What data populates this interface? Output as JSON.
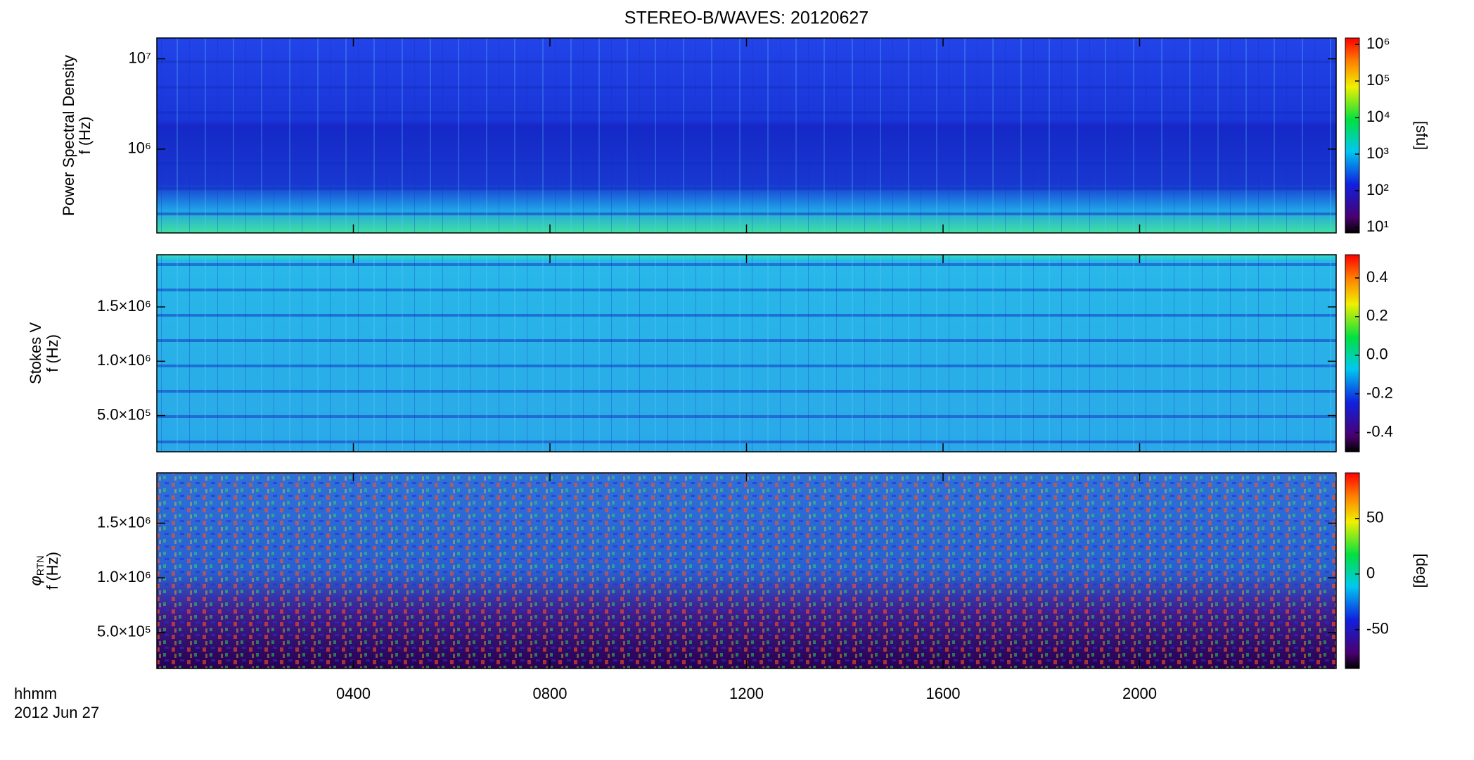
{
  "chart_data": [
    {
      "type": "heatmap",
      "title": "STEREO-B/WAVES: 20120627",
      "ylabel": "Power Spectral Density",
      "yunit_label": "f (Hz)",
      "yscale": "log",
      "xlim": [
        0,
        24
      ],
      "ylim": [
        118000,
        17000000
      ],
      "yticks": [
        {
          "value": 1000000,
          "label": "10⁶"
        },
        {
          "value": 10000000,
          "label": "10⁷"
        }
      ],
      "cscale": "log",
      "clim": [
        7,
        1500000
      ],
      "clabel": "[sfu]",
      "cticks": [
        {
          "value": 10,
          "label": "10¹"
        },
        {
          "value": 100,
          "label": "10²"
        },
        {
          "value": 1000,
          "label": "10³"
        },
        {
          "value": 10000,
          "label": "10⁴"
        },
        {
          "value": 100000,
          "label": "10⁵"
        },
        {
          "value": 1000000,
          "label": "10⁶"
        }
      ]
    },
    {
      "type": "heatmap",
      "ylabel": "Stokes V",
      "yunit_label": "f (Hz)",
      "yscale": "linear",
      "xlim": [
        0,
        24
      ],
      "ylim": [
        167000,
        1980000
      ],
      "yticks": [
        {
          "value": 500000,
          "label": "5.0×10⁵"
        },
        {
          "value": 1000000,
          "label": "1.0×10⁶"
        },
        {
          "value": 1500000,
          "label": "1.5×10⁶"
        }
      ],
      "cscale": "linear",
      "clim": [
        -0.5,
        0.52
      ],
      "cticks": [
        -0.4,
        -0.2,
        {
          "value": 0,
          "label": "0.0"
        },
        0.2,
        0.4
      ]
    },
    {
      "type": "heatmap",
      "ylabel": "φ",
      "ylabel_subscript": "RTN",
      "yunit_label": "f (Hz)",
      "yscale": "linear",
      "xlim": [
        0,
        24
      ],
      "ylim": [
        170000,
        1960000
      ],
      "yticks": [
        {
          "value": 500000,
          "label": "5.0×10⁵"
        },
        {
          "value": 1000000,
          "label": "1.0×10⁶"
        },
        {
          "value": 1500000,
          "label": "1.5×10⁶"
        }
      ],
      "cscale": "linear",
      "clim": [
        -85,
        91
      ],
      "clabel": "[deg]",
      "cticks": [
        -50,
        0,
        50
      ],
      "xlabel": "hhmm",
      "date_label": "2012 Jun 27",
      "xticks": [
        {
          "value": 4,
          "label": "0400"
        },
        {
          "value": 8,
          "label": "0800"
        },
        {
          "value": 12,
          "label": "1200"
        },
        {
          "value": 16,
          "label": "1600"
        },
        {
          "value": 20,
          "label": "2000"
        }
      ]
    }
  ]
}
